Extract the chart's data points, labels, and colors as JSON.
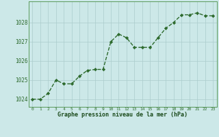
{
  "x": [
    0,
    1,
    2,
    3,
    4,
    5,
    6,
    7,
    8,
    9,
    10,
    11,
    12,
    13,
    14,
    15,
    16,
    17,
    18,
    19,
    20,
    21,
    22,
    23
  ],
  "y": [
    1024.0,
    1024.0,
    1024.3,
    1025.0,
    1024.8,
    1024.8,
    1025.2,
    1025.5,
    1025.55,
    1025.55,
    1027.0,
    1027.4,
    1027.2,
    1026.7,
    1026.7,
    1026.7,
    1027.2,
    1027.7,
    1028.0,
    1028.4,
    1028.4,
    1028.5,
    1028.35,
    1028.35
  ],
  "line_color": "#2d6a2d",
  "marker": "D",
  "marker_size": 2.2,
  "bg_color": "#cce8e8",
  "grid_color": "#aacccc",
  "xlabel": "Graphe pression niveau de la mer (hPa)",
  "xlabel_color": "#1a4a1a",
  "tick_color": "#2d6a2d",
  "ylim": [
    1023.6,
    1029.1
  ],
  "yticks": [
    1024,
    1025,
    1026,
    1027,
    1028
  ],
  "xticks": [
    0,
    1,
    2,
    3,
    4,
    5,
    6,
    7,
    8,
    9,
    10,
    11,
    12,
    13,
    14,
    15,
    16,
    17,
    18,
    19,
    20,
    21,
    22,
    23
  ],
  "line_width": 1.0,
  "spine_color": "#5a9a5a"
}
